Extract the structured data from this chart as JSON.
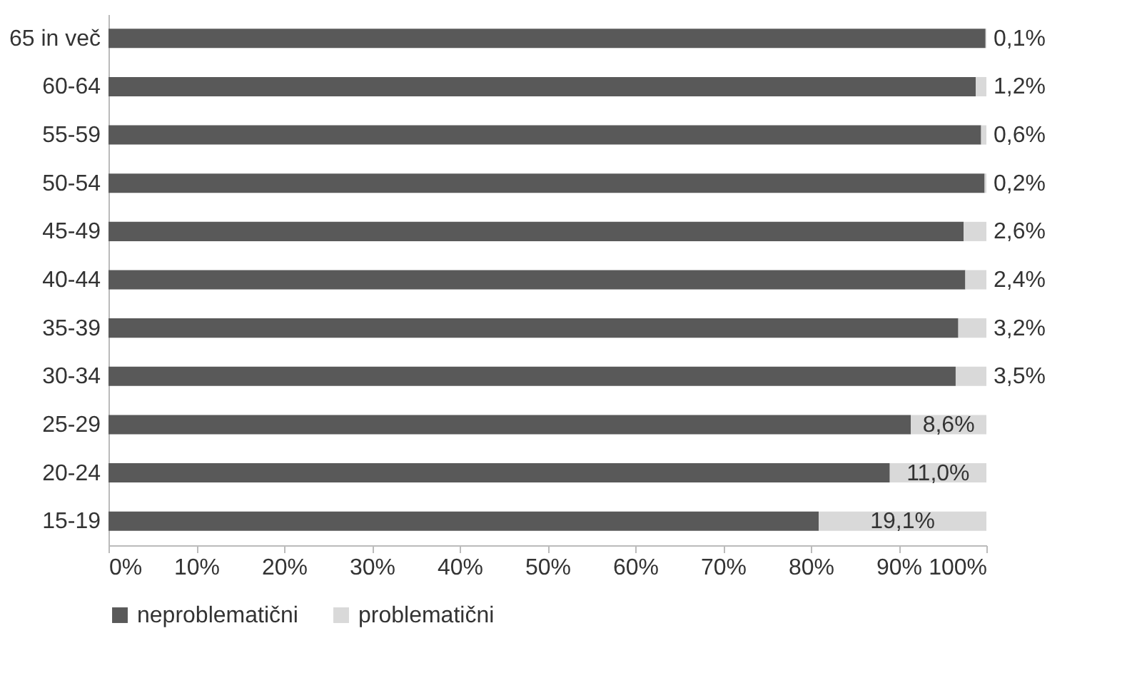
{
  "chart_data": {
    "type": "bar",
    "orientation": "horizontal",
    "stacked": true,
    "categories": [
      "65 in več",
      "60-64",
      "55-59",
      "50-54",
      "45-49",
      "40-44",
      "35-39",
      "30-34",
      "25-29",
      "20-24",
      "15-19"
    ],
    "series": [
      {
        "name": "neproblematični",
        "color": "#595959",
        "values": [
          99.9,
          98.8,
          99.4,
          99.8,
          97.4,
          97.6,
          96.8,
          96.5,
          91.4,
          89.0,
          80.9
        ]
      },
      {
        "name": "problematični",
        "color": "#d9d9d9",
        "values": [
          0.1,
          1.2,
          0.6,
          0.2,
          2.6,
          2.4,
          3.2,
          3.5,
          8.6,
          11.0,
          19.1
        ],
        "value_labels": [
          "0,1%",
          "1,2%",
          "0,6%",
          "0,2%",
          "2,6%",
          "2,4%",
          "3,2%",
          "3,5%",
          "8,6%",
          "11,0%",
          "19,1%"
        ]
      }
    ],
    "xlim": [
      0,
      100
    ],
    "xticks": [
      {
        "value": 0,
        "label": "0%"
      },
      {
        "value": 10,
        "label": "10%"
      },
      {
        "value": 20,
        "label": "20%"
      },
      {
        "value": 30,
        "label": "30%"
      },
      {
        "value": 40,
        "label": "40%"
      },
      {
        "value": 50,
        "label": "50%"
      },
      {
        "value": 60,
        "label": "60%"
      },
      {
        "value": 70,
        "label": "70%"
      },
      {
        "value": 80,
        "label": "80%"
      },
      {
        "value": 90,
        "label": "90%"
      },
      {
        "value": 100,
        "label": "100%"
      }
    ],
    "grid": false,
    "legend": "bottom"
  }
}
